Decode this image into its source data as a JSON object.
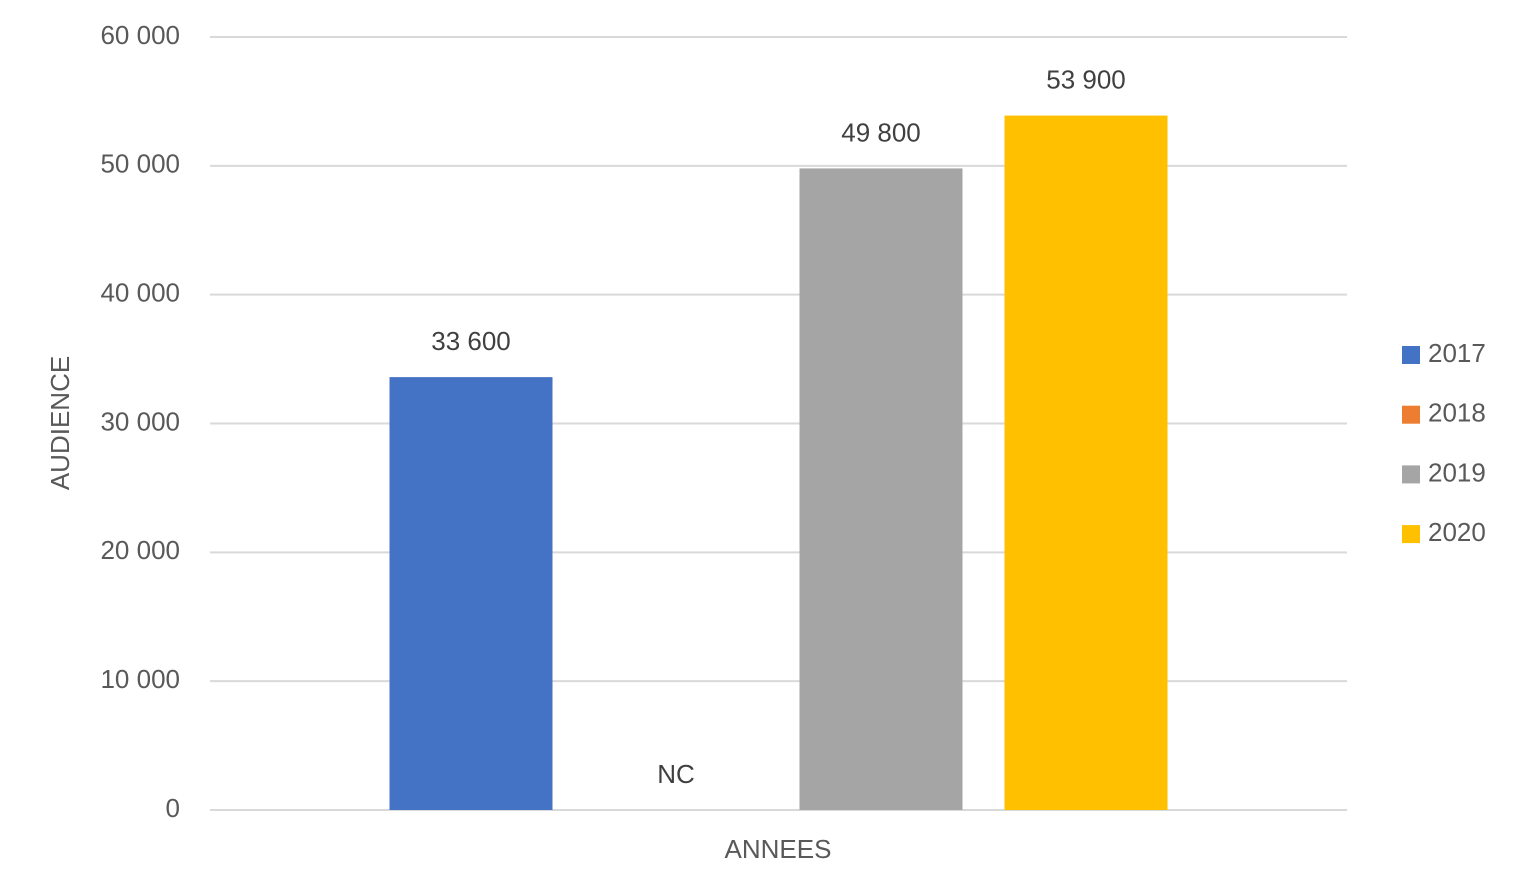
{
  "chart_data": {
    "type": "bar",
    "xlabel": "ANNEES",
    "ylabel": "AUDIENCE",
    "categories": [
      null
    ],
    "series": [
      {
        "name": "2017",
        "color": "#4472c4",
        "values": [
          33600
        ],
        "value_labels": [
          "33 600"
        ]
      },
      {
        "name": "2018",
        "color": "#ed7d31",
        "values": [
          null
        ],
        "value_labels": [
          "NC"
        ]
      },
      {
        "name": "2019",
        "color": "#a5a5a5",
        "values": [
          49800
        ],
        "value_labels": [
          "49 800"
        ]
      },
      {
        "name": "2020",
        "color": "#ffc000",
        "values": [
          53900
        ],
        "value_labels": [
          "53 900"
        ]
      }
    ],
    "ylim": [
      0,
      60000
    ],
    "yticks": [
      0,
      {
        "value": 10000,
        "label": "10 000"
      },
      {
        "value": 20000,
        "label": "20 000"
      },
      {
        "value": 30000,
        "label": "30 000"
      },
      {
        "value": 40000,
        "label": "40 000"
      },
      {
        "value": 50000,
        "label": "50 000"
      },
      {
        "value": 60000,
        "label": "60 000"
      }
    ],
    "grid": true,
    "legend": "right"
  }
}
